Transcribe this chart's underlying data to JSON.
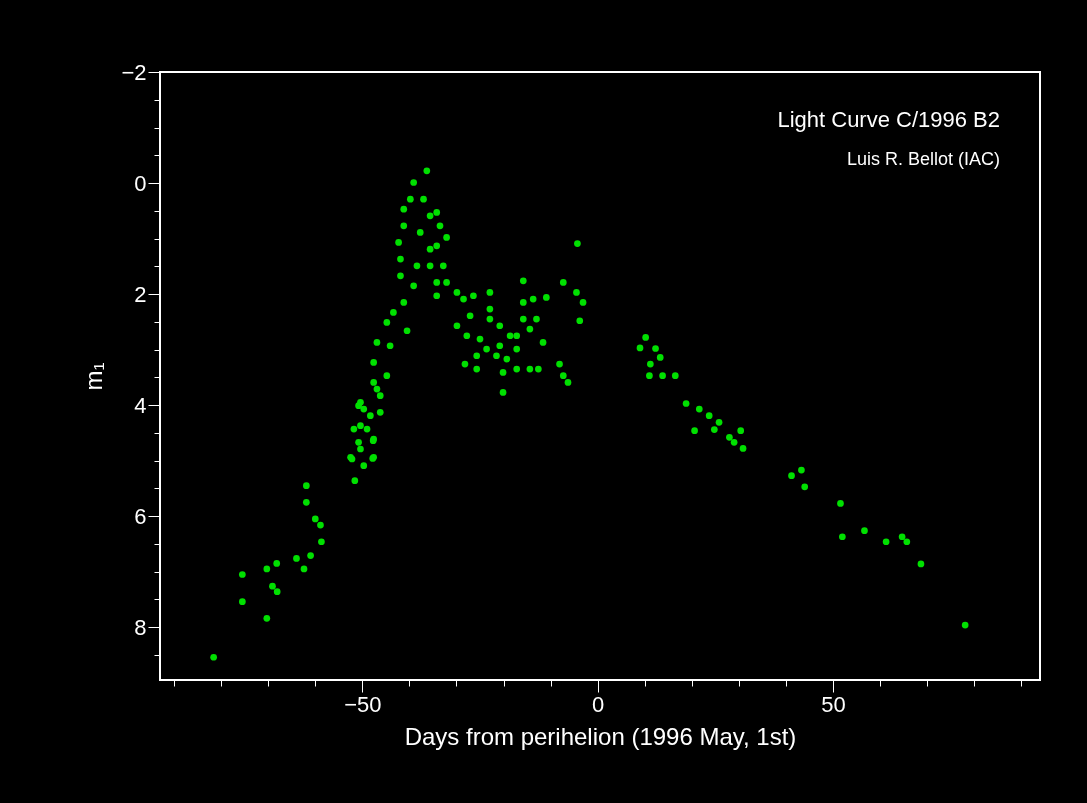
{
  "chart_data": {
    "type": "scatter",
    "xlabel": "Days from perihelion (1996 May, 1st)",
    "ylabel": "m₁",
    "annotations": [
      "Light Curve C/1996 B2",
      "Luis R. Bellot (IAC)"
    ],
    "xlim": [
      -93,
      94
    ],
    "ylim": [
      8.95,
      -2
    ],
    "xticks": [
      {
        "value": -90,
        "label": null
      },
      {
        "value": -80,
        "label": null
      },
      {
        "value": -70,
        "label": null
      },
      {
        "value": -60,
        "label": null
      },
      -50,
      {
        "value": -40,
        "label": null
      },
      {
        "value": -30,
        "label": null
      },
      {
        "value": -20,
        "label": null
      },
      {
        "value": -10,
        "label": null
      },
      0,
      {
        "value": 10,
        "label": null
      },
      {
        "value": 20,
        "label": null
      },
      {
        "value": 30,
        "label": null
      },
      {
        "value": 40,
        "label": null
      },
      50,
      {
        "value": 60,
        "label": null
      },
      {
        "value": 70,
        "label": null
      },
      {
        "value": 80,
        "label": null
      },
      {
        "value": 90,
        "label": null
      }
    ],
    "yticks": [
      -2,
      {
        "value": -1.5,
        "label": null
      },
      {
        "value": -1,
        "label": null
      },
      {
        "value": -0.5,
        "label": null
      },
      0,
      {
        "value": 0.5,
        "label": null
      },
      {
        "value": 1,
        "label": null
      },
      {
        "value": 1.5,
        "label": null
      },
      2,
      {
        "value": 2.5,
        "label": null
      },
      {
        "value": 3,
        "label": null
      },
      {
        "value": 3.5,
        "label": null
      },
      4,
      {
        "value": 4.5,
        "label": null
      },
      {
        "value": 5,
        "label": null
      },
      {
        "value": 5.5,
        "label": null
      },
      6,
      {
        "value": 6.5,
        "label": null
      },
      {
        "value": 7,
        "label": null
      },
      {
        "value": 7.5,
        "label": null
      },
      8,
      {
        "value": 8.5,
        "label": null
      }
    ],
    "grid": false,
    "legend": false,
    "marker": "circle",
    "series": [
      {
        "color": "#00e000",
        "x": [
          -81.6,
          -75.5,
          -75.5,
          -70.3,
          -70.3,
          -68.2,
          -69.1,
          -68.1,
          -62.4,
          -64.0,
          -61.0,
          -61.9,
          -61.9,
          -60.0,
          -58.9,
          -58.7,
          -51.6,
          -52.2,
          -47.8,
          -50.8,
          -47.7,
          -49.0,
          -49.7,
          -46.2,
          -46.9,
          -50.4,
          -36.3,
          -39.1,
          -39.8,
          -37.0,
          -41.2,
          -35.6,
          -34.2,
          -33.5,
          -32.1,
          -37.7,
          -41.2,
          -42.3,
          -35.6,
          -34.2,
          -38.4,
          -41.9,
          -35.6,
          -32.8,
          -41.9,
          -39.1,
          -34.2,
          -34.2,
          -32.1,
          -29.9,
          -41.2,
          -43.4,
          -44.8,
          -40.5,
          -46.9,
          -44.1,
          -47.6,
          -44.8,
          -47.6,
          -46.2,
          -50.8,
          -48.3,
          -50.4,
          -51.8,
          -47.6,
          -50.4,
          -52.5,
          -47.6,
          -49.7,
          -28.5,
          -26.4,
          -22.9,
          -22.9,
          -15.8,
          -13.7,
          -15.8,
          -10.9,
          -7.3,
          -4.3,
          -4.5,
          -3.1,
          -3.8,
          -27.1,
          -29.9,
          -27.8,
          -25.0,
          -22.9,
          -20.8,
          -23.6,
          -21.5,
          -19.3,
          -17.2,
          -15.8,
          -13.0,
          -14.4,
          -17.2,
          -11.6,
          -25.7,
          -28.2,
          -25.7,
          -20.1,
          -17.2,
          -14.4,
          -12.6,
          -20.1,
          -8.1,
          -7.3,
          -6.3,
          -20.8,
          -18.6,
          10.2,
          9.0,
          12.3,
          13.3,
          11.2,
          11.0,
          13.8,
          16.5,
          18.8,
          21.6,
          23.7,
          25.8,
          20.6,
          24.8,
          28.0,
          30.4,
          29.0,
          30.9,
          41.2,
          43.3,
          44.0,
          51.6,
          52.0,
          56.7,
          61.3,
          64.7,
          65.7,
          68.7,
          78.1
        ],
        "values": [
          8.54,
          7.05,
          7.54,
          7.84,
          6.95,
          6.85,
          7.26,
          7.36,
          6.95,
          6.76,
          6.71,
          5.45,
          5.75,
          6.05,
          6.16,
          6.46,
          5.36,
          4.97,
          4.96,
          4.67,
          4.64,
          4.43,
          4.07,
          4.13,
          3.71,
          3.95,
          -0.22,
          -0.01,
          0.29,
          0.29,
          0.47,
          0.59,
          0.53,
          0.77,
          0.98,
          0.89,
          0.77,
          1.07,
          1.19,
          1.13,
          1.49,
          1.37,
          1.49,
          1.49,
          1.67,
          1.85,
          1.79,
          2.03,
          1.79,
          1.97,
          2.15,
          2.33,
          2.51,
          2.66,
          2.87,
          2.93,
          3.23,
          3.47,
          3.59,
          3.83,
          4.01,
          4.19,
          4.37,
          4.43,
          4.61,
          4.79,
          4.94,
          4.94,
          5.09,
          2.09,
          2.03,
          1.97,
          2.27,
          1.76,
          2.09,
          2.15,
          2.06,
          1.79,
          1.09,
          1.97,
          2.15,
          2.48,
          2.39,
          2.57,
          2.75,
          2.81,
          2.45,
          2.57,
          2.99,
          3.11,
          3.17,
          2.75,
          2.45,
          2.45,
          2.63,
          2.99,
          2.87,
          3.11,
          3.26,
          3.35,
          3.41,
          3.35,
          3.35,
          3.35,
          3.77,
          3.26,
          3.47,
          3.59,
          2.93,
          2.75,
          2.78,
          2.97,
          2.98,
          3.14,
          3.26,
          3.47,
          3.47,
          3.47,
          3.97,
          4.07,
          4.19,
          4.31,
          4.46,
          4.44,
          4.58,
          4.46,
          4.67,
          4.78,
          5.27,
          5.17,
          5.47,
          5.77,
          6.37,
          6.26,
          6.46,
          6.37,
          6.46,
          6.86,
          7.96
        ]
      }
    ]
  }
}
